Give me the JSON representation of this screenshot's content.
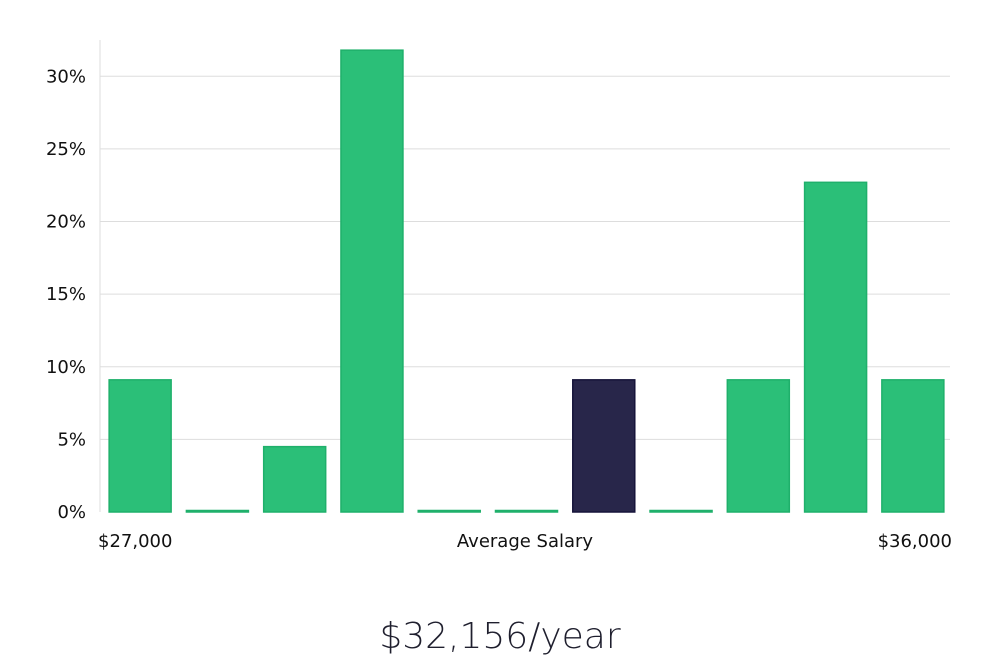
{
  "chart_data": {
    "type": "bar",
    "xlabel": "Average Salary",
    "x_range_labels": {
      "min": "$27,000",
      "max": "$36,000"
    },
    "categories": [
      "$27,000–$27,818",
      "$27,818–$28,636",
      "$28,636–$29,455",
      "$29,455–$30,273",
      "$30,273–$31,091",
      "$31,091–$31,909",
      "$31,909–$32,727",
      "$32,727–$33,545",
      "$33,545–$34,364",
      "$34,364–$35,182",
      "$35,182–$36,000"
    ],
    "values": [
      9.1,
      0,
      4.5,
      31.8,
      0,
      0,
      9.1,
      0,
      9.1,
      22.7,
      9.1
    ],
    "highlight_index": 6,
    "ylim": [
      0,
      32.5
    ],
    "yticks": [
      0,
      5,
      10,
      15,
      20,
      25,
      30
    ],
    "ytick_labels": [
      "0%",
      "5%",
      "10%",
      "15%",
      "20%",
      "25%",
      "30%"
    ],
    "grid": true,
    "colors": {
      "bar": "#2bbf78",
      "bar_stroke": "#1fb06b",
      "highlight": "#28264a",
      "highlight_stroke": "#16143a",
      "grid": "#dddddd",
      "axis": "#dddddd"
    }
  },
  "headline": "$32,156/year"
}
